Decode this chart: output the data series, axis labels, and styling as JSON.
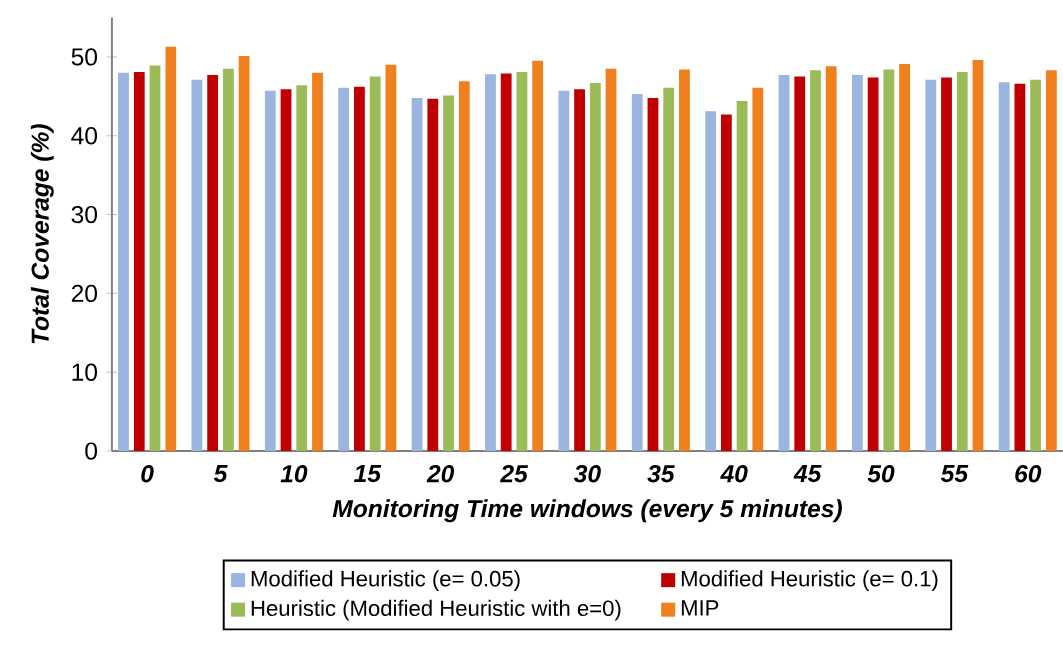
{
  "chart_data": {
    "type": "bar",
    "xlabel": "Monitoring Time windows  (every 5 minutes)",
    "ylabel": "Total  Coverage (%)",
    "categories": [
      "0",
      "5",
      "10",
      "15",
      "20",
      "25",
      "30",
      "35",
      "40",
      "45",
      "50",
      "55",
      "60"
    ],
    "series": [
      {
        "name": "Modified Heuristic (e= 0.05)",
        "color": "#9ab5e0",
        "values": [
          48.0,
          47.1,
          45.7,
          46.1,
          44.8,
          47.8,
          45.7,
          45.3,
          43.1,
          47.7,
          47.7,
          47.1,
          46.8
        ]
      },
      {
        "name": "Modified Heuristic (e= 0.1)",
        "color": "#c00000",
        "values": [
          48.1,
          47.7,
          45.9,
          46.2,
          44.7,
          47.9,
          45.9,
          44.8,
          42.7,
          47.5,
          47.4,
          47.4,
          46.6
        ]
      },
      {
        "name": "Heuristic (Modified Heuristic with e=0)",
        "color": "#9bbb59",
        "values": [
          48.9,
          48.5,
          46.4,
          47.5,
          45.1,
          48.1,
          46.7,
          46.1,
          44.4,
          48.3,
          48.4,
          48.1,
          47.1
        ]
      },
      {
        "name": "MIP",
        "color": "#f07f1e",
        "values": [
          51.3,
          50.1,
          48.0,
          49.0,
          46.9,
          49.5,
          48.5,
          48.4,
          46.1,
          48.8,
          49.1,
          49.6,
          48.3
        ]
      }
    ],
    "ylim": [
      0,
      55
    ],
    "yticks": [
      0,
      10,
      20,
      30,
      40,
      50
    ],
    "grid": false,
    "legend": "bottom"
  }
}
